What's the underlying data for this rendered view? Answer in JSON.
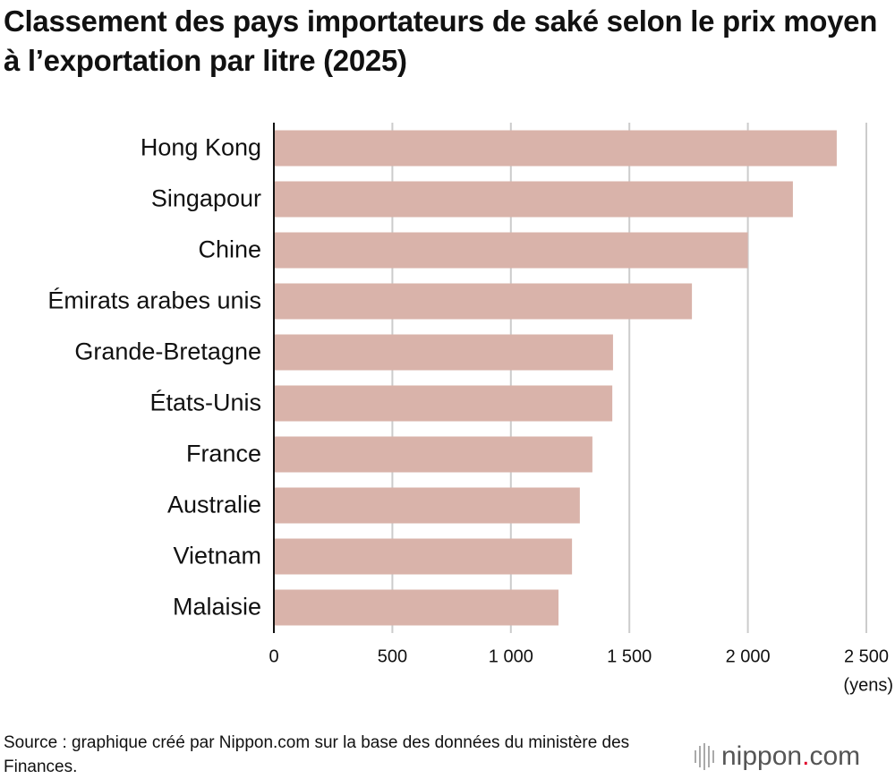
{
  "chart_data": {
    "type": "bar",
    "orientation": "horizontal",
    "title": "Classement des pays importateurs de saké selon le prix moyen à l’exportation par litre (2025)",
    "categories": [
      "Hong Kong",
      "Singapour",
      "Chine",
      "Émirats arabes unis",
      "Grande-Bretagne",
      "États-Unis",
      "France",
      "Australie",
      "Vietnam",
      "Malaisie"
    ],
    "values": [
      2375,
      2190,
      2000,
      1764,
      1431,
      1428,
      1344,
      1291,
      1258,
      1201
    ],
    "color": "#d9b3aa",
    "xlim": [
      0,
      2500
    ],
    "xticks": [
      0,
      500,
      {
        "value": 1000,
        "label": "1 000"
      },
      {
        "value": 1500,
        "label": "1 500"
      },
      {
        "value": 2000,
        "label": "2 000"
      },
      {
        "value": 2500,
        "label": "2 500"
      }
    ],
    "x_unit": "(yens)",
    "grid": true,
    "source": "Source : graphique créé par Nippon.com sur la base des données du ministère des Finances.",
    "logo": {
      "name": "nippon",
      "dot": ".",
      "suffix": "com"
    }
  }
}
